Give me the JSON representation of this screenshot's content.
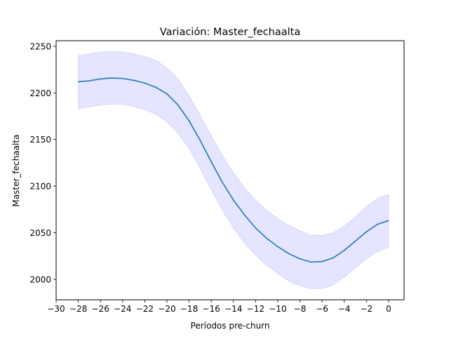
{
  "chart_data": {
    "type": "line",
    "title": "Variación: Master_fechaalta",
    "xlabel": "Períodos pre-churn",
    "ylabel": "Master_fechaalta",
    "xlim": [
      -30,
      1.4
    ],
    "ylim": [
      1978,
      2256
    ],
    "xticks": [
      -30,
      -28,
      -26,
      -24,
      -22,
      -20,
      -18,
      -16,
      -14,
      -12,
      -10,
      -8,
      -6,
      -4,
      -2,
      0
    ],
    "yticks": [
      2000,
      2050,
      2100,
      2150,
      2200,
      2250
    ],
    "grid": false,
    "colors": {
      "line": "#1f77b4",
      "band": "#0000ff"
    },
    "series": [
      {
        "x": [
          -28,
          -27,
          -26,
          -25,
          -24,
          -23,
          -22,
          -21,
          -20,
          -19,
          -18,
          -17,
          -16,
          -15,
          -14,
          -13,
          -12,
          -11,
          -10,
          -9,
          -8,
          -7,
          -6,
          -5,
          -4,
          -3,
          -2,
          -1,
          0
        ],
        "values": [
          2212,
          2213,
          2215,
          2216,
          2215.5,
          2213.5,
          2210.5,
          2206,
          2199,
          2187,
          2170,
          2149,
          2126,
          2104,
          2085,
          2069,
          2055,
          2044,
          2035,
          2027.5,
          2022,
          2018.5,
          2019,
          2023,
          2031,
          2041,
          2051,
          2059,
          2063
        ],
        "upper": [
          2240,
          2242,
          2244,
          2244.5,
          2244,
          2242,
          2239,
          2235,
          2227,
          2215,
          2197,
          2176,
          2154,
          2133,
          2114,
          2098,
          2085,
          2074,
          2065,
          2058,
          2052,
          2047.5,
          2047,
          2050,
          2057,
          2067,
          2078,
          2087,
          2091
        ],
        "lower": [
          2183,
          2185,
          2187,
          2188,
          2187.5,
          2185.5,
          2182,
          2177,
          2169,
          2157,
          2140,
          2119,
          2096,
          2074,
          2055,
          2039,
          2026,
          2015,
          2006,
          1998,
          1993,
          1990,
          1990,
          1994,
          2002,
          2012,
          2022,
          2030,
          2034
        ]
      }
    ]
  }
}
